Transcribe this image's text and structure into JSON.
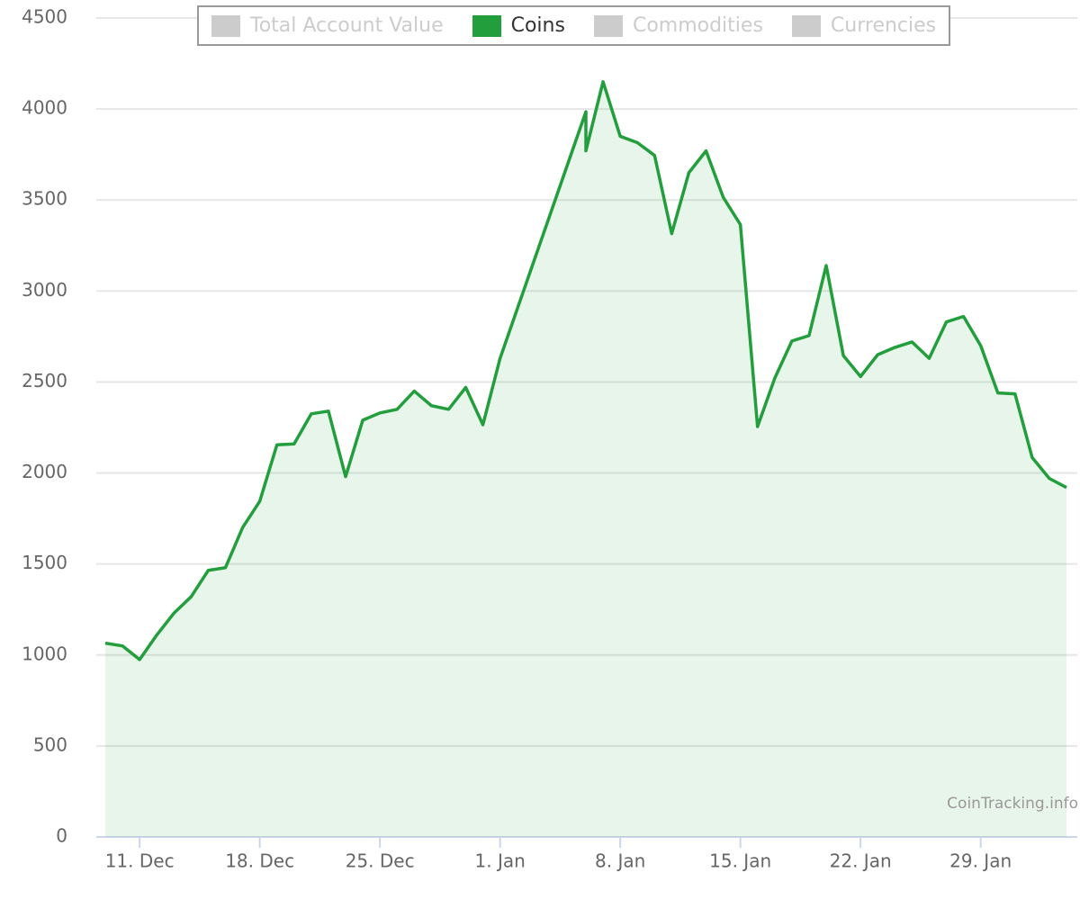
{
  "chart_data": {
    "type": "area",
    "series": [
      {
        "name": "Total Account Value",
        "color": "#cccccc",
        "visible": false
      },
      {
        "name": "Coins",
        "color": "#229e3c",
        "visible": true,
        "x": [
          "9. Dec",
          "10. Dec",
          "11. Dec",
          "12. Dec",
          "13. Dec",
          "14. Dec",
          "15. Dec",
          "16. Dec",
          "17. Dec",
          "18. Dec",
          "19. Dec",
          "20. Dec",
          "21. Dec",
          "22. Dec",
          "23. Dec",
          "24. Dec",
          "25. Dec",
          "26. Dec",
          "27. Dec",
          "28. Dec",
          "29. Dec",
          "30. Dec",
          "31. Dec",
          "1. Jan",
          "6. Jan",
          "6. Jan",
          "7. Jan",
          "8. Jan",
          "9. Jan",
          "10. Jan",
          "11. Jan",
          "12. Jan",
          "13. Jan",
          "14. Jan",
          "15. Jan",
          "16. Jan",
          "17. Jan",
          "18. Jan",
          "19. Jan",
          "20. Jan",
          "21. Jan",
          "22. Jan",
          "23. Jan",
          "24. Jan",
          "25. Jan",
          "26. Jan",
          "27. Jan",
          "28. Jan",
          "29. Jan",
          "30. Jan",
          "31. Jan",
          "1. Feb",
          "2. Feb",
          "3. Feb"
        ],
        "values": [
          1065,
          1050,
          975,
          1110,
          1230,
          1320,
          1465,
          1480,
          1700,
          1845,
          2155,
          2160,
          2325,
          2340,
          1980,
          2290,
          2330,
          2350,
          2450,
          2370,
          2350,
          2470,
          2265,
          2630,
          3985,
          3770,
          4150,
          3850,
          3815,
          3745,
          3315,
          3650,
          3770,
          3515,
          3365,
          2255,
          2520,
          2725,
          2755,
          3140,
          2645,
          2530,
          2650,
          2690,
          2720,
          2630,
          2830,
          2860,
          2700,
          2440,
          2435,
          2085,
          1970,
          1920
        ]
      },
      {
        "name": "Commodities",
        "color": "#cccccc",
        "visible": false
      },
      {
        "name": "Currencies",
        "color": "#cccccc",
        "visible": false
      }
    ],
    "ylim": [
      0,
      4500
    ],
    "yticks": [
      0,
      500,
      1000,
      1500,
      2000,
      2500,
      3000,
      3500,
      4000,
      4500
    ],
    "xticks": [
      "11. Dec",
      "18. Dec",
      "25. Dec",
      "1. Jan",
      "8. Jan",
      "15. Jan",
      "22. Jan",
      "29. Jan"
    ],
    "grid": true,
    "credit": "CoinTracking.info"
  }
}
